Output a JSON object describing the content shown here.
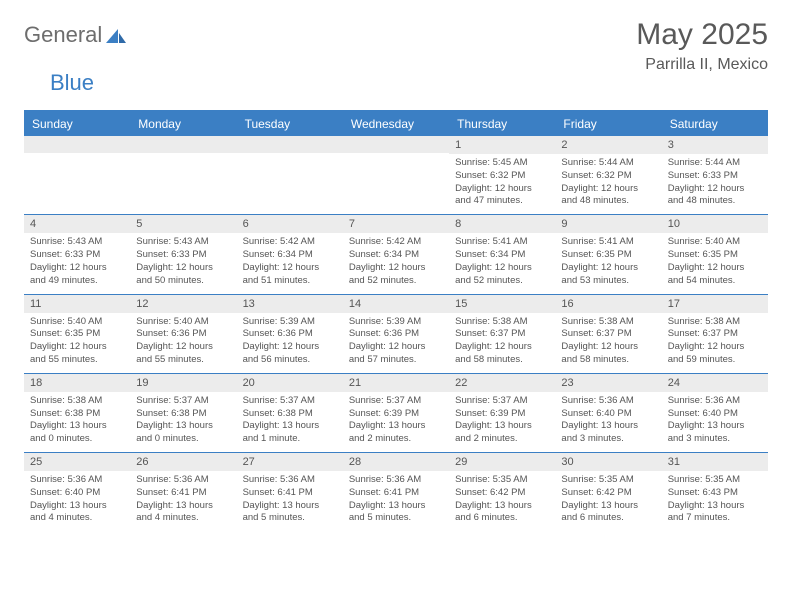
{
  "brand": {
    "word1": "General",
    "word2": "Blue"
  },
  "title": "May 2025",
  "location": "Parrilla II, Mexico",
  "colors": {
    "accent": "#3b7fc4",
    "header_text": "#595959",
    "day_bg": "#ececec",
    "body_text": "#555555",
    "logo_gray": "#6d6d6d"
  },
  "dow": [
    "Sunday",
    "Monday",
    "Tuesday",
    "Wednesday",
    "Thursday",
    "Friday",
    "Saturday"
  ],
  "weeks": [
    [
      null,
      null,
      null,
      null,
      {
        "n": "1",
        "sr": "5:45 AM",
        "ss": "6:32 PM",
        "dl": "12 hours and 47 minutes."
      },
      {
        "n": "2",
        "sr": "5:44 AM",
        "ss": "6:32 PM",
        "dl": "12 hours and 48 minutes."
      },
      {
        "n": "3",
        "sr": "5:44 AM",
        "ss": "6:33 PM",
        "dl": "12 hours and 48 minutes."
      }
    ],
    [
      {
        "n": "4",
        "sr": "5:43 AM",
        "ss": "6:33 PM",
        "dl": "12 hours and 49 minutes."
      },
      {
        "n": "5",
        "sr": "5:43 AM",
        "ss": "6:33 PM",
        "dl": "12 hours and 50 minutes."
      },
      {
        "n": "6",
        "sr": "5:42 AM",
        "ss": "6:34 PM",
        "dl": "12 hours and 51 minutes."
      },
      {
        "n": "7",
        "sr": "5:42 AM",
        "ss": "6:34 PM",
        "dl": "12 hours and 52 minutes."
      },
      {
        "n": "8",
        "sr": "5:41 AM",
        "ss": "6:34 PM",
        "dl": "12 hours and 52 minutes."
      },
      {
        "n": "9",
        "sr": "5:41 AM",
        "ss": "6:35 PM",
        "dl": "12 hours and 53 minutes."
      },
      {
        "n": "10",
        "sr": "5:40 AM",
        "ss": "6:35 PM",
        "dl": "12 hours and 54 minutes."
      }
    ],
    [
      {
        "n": "11",
        "sr": "5:40 AM",
        "ss": "6:35 PM",
        "dl": "12 hours and 55 minutes."
      },
      {
        "n": "12",
        "sr": "5:40 AM",
        "ss": "6:36 PM",
        "dl": "12 hours and 55 minutes."
      },
      {
        "n": "13",
        "sr": "5:39 AM",
        "ss": "6:36 PM",
        "dl": "12 hours and 56 minutes."
      },
      {
        "n": "14",
        "sr": "5:39 AM",
        "ss": "6:36 PM",
        "dl": "12 hours and 57 minutes."
      },
      {
        "n": "15",
        "sr": "5:38 AM",
        "ss": "6:37 PM",
        "dl": "12 hours and 58 minutes."
      },
      {
        "n": "16",
        "sr": "5:38 AM",
        "ss": "6:37 PM",
        "dl": "12 hours and 58 minutes."
      },
      {
        "n": "17",
        "sr": "5:38 AM",
        "ss": "6:37 PM",
        "dl": "12 hours and 59 minutes."
      }
    ],
    [
      {
        "n": "18",
        "sr": "5:38 AM",
        "ss": "6:38 PM",
        "dl": "13 hours and 0 minutes."
      },
      {
        "n": "19",
        "sr": "5:37 AM",
        "ss": "6:38 PM",
        "dl": "13 hours and 0 minutes."
      },
      {
        "n": "20",
        "sr": "5:37 AM",
        "ss": "6:38 PM",
        "dl": "13 hours and 1 minute."
      },
      {
        "n": "21",
        "sr": "5:37 AM",
        "ss": "6:39 PM",
        "dl": "13 hours and 2 minutes."
      },
      {
        "n": "22",
        "sr": "5:37 AM",
        "ss": "6:39 PM",
        "dl": "13 hours and 2 minutes."
      },
      {
        "n": "23",
        "sr": "5:36 AM",
        "ss": "6:40 PM",
        "dl": "13 hours and 3 minutes."
      },
      {
        "n": "24",
        "sr": "5:36 AM",
        "ss": "6:40 PM",
        "dl": "13 hours and 3 minutes."
      }
    ],
    [
      {
        "n": "25",
        "sr": "5:36 AM",
        "ss": "6:40 PM",
        "dl": "13 hours and 4 minutes."
      },
      {
        "n": "26",
        "sr": "5:36 AM",
        "ss": "6:41 PM",
        "dl": "13 hours and 4 minutes."
      },
      {
        "n": "27",
        "sr": "5:36 AM",
        "ss": "6:41 PM",
        "dl": "13 hours and 5 minutes."
      },
      {
        "n": "28",
        "sr": "5:36 AM",
        "ss": "6:41 PM",
        "dl": "13 hours and 5 minutes."
      },
      {
        "n": "29",
        "sr": "5:35 AM",
        "ss": "6:42 PM",
        "dl": "13 hours and 6 minutes."
      },
      {
        "n": "30",
        "sr": "5:35 AM",
        "ss": "6:42 PM",
        "dl": "13 hours and 6 minutes."
      },
      {
        "n": "31",
        "sr": "5:35 AM",
        "ss": "6:43 PM",
        "dl": "13 hours and 7 minutes."
      }
    ]
  ],
  "labels": {
    "sunrise": "Sunrise:",
    "sunset": "Sunset:",
    "daylight": "Daylight:"
  }
}
